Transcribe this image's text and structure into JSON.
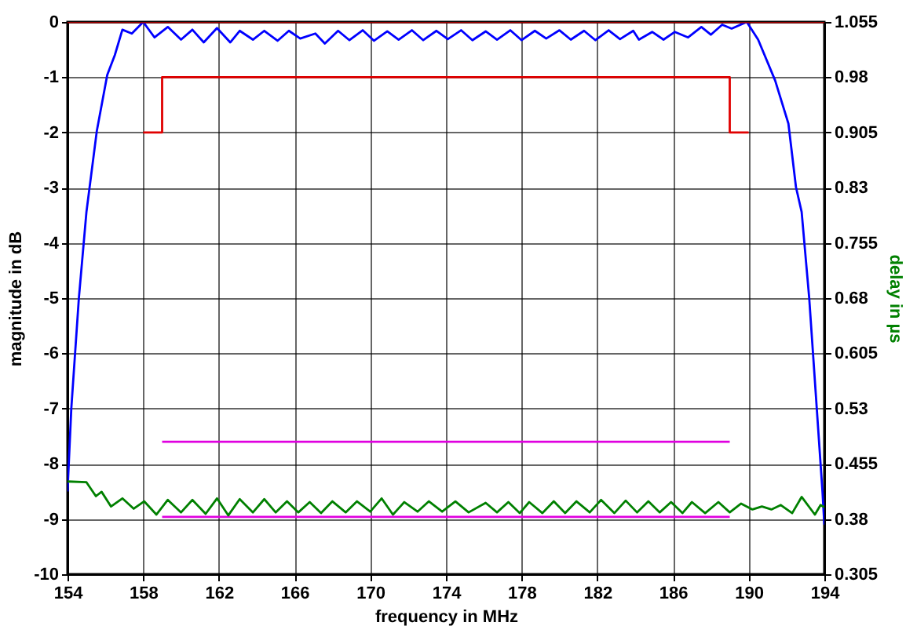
{
  "chart_data": {
    "type": "line",
    "xlabel": "frequency in MHz",
    "ylabel": "magnitude in dB",
    "y2label": "delay in µs",
    "xlim": [
      154,
      194
    ],
    "xticks": [
      154,
      158,
      162,
      166,
      170,
      174,
      178,
      182,
      186,
      190,
      194
    ],
    "ylim": [
      -10,
      0
    ],
    "yticks": [
      -10,
      -9,
      -8,
      -7,
      -6,
      -5,
      -4,
      -3,
      -2,
      -1,
      0
    ],
    "y2lim": [
      0.305,
      1.055
    ],
    "y2ticks": [
      0.305,
      0.38,
      0.455,
      0.53,
      0.605,
      0.68,
      0.755,
      0.83,
      0.905,
      0.98,
      1.055
    ],
    "grid": true,
    "series": [
      {
        "color": "#0000ff",
        "x": [
          154,
          154.2,
          154.6,
          155,
          155.55,
          156.1,
          156.5,
          156.9,
          157.4,
          158,
          158.6,
          159.3,
          160,
          160.6,
          161.2,
          161.9,
          162.6,
          163.1,
          163.8,
          164.4,
          165.1,
          165.7,
          166.3,
          167.1,
          167.6,
          168.3,
          168.9,
          169.6,
          170.2,
          170.9,
          171.5,
          172.2,
          172.8,
          173.5,
          174.1,
          174.8,
          175.4,
          176.1,
          176.7,
          177.4,
          178,
          178.7,
          179.3,
          180,
          180.6,
          181.3,
          181.9,
          182.6,
          183.2,
          183.9,
          184.2,
          184.9,
          185.5,
          186.1,
          186.8,
          187.5,
          188,
          188.6,
          189.1,
          189.9,
          190.5,
          191.4,
          192.1,
          192.5,
          192.8,
          193.2,
          193.6,
          193.9,
          194
        ],
        "values": [
          -8.5,
          -7,
          -5,
          -3.44,
          -1.97,
          -0.96,
          -0.6,
          -0.14,
          -0.21,
          0,
          -0.28,
          -0.09,
          -0.32,
          -0.14,
          -0.37,
          -0.11,
          -0.37,
          -0.16,
          -0.32,
          -0.16,
          -0.34,
          -0.16,
          -0.3,
          -0.21,
          -0.39,
          -0.16,
          -0.33,
          -0.15,
          -0.34,
          -0.17,
          -0.32,
          -0.15,
          -0.33,
          -0.16,
          -0.31,
          -0.15,
          -0.33,
          -0.17,
          -0.32,
          -0.15,
          -0.33,
          -0.16,
          -0.3,
          -0.15,
          -0.32,
          -0.16,
          -0.33,
          -0.15,
          -0.31,
          -0.16,
          -0.32,
          -0.18,
          -0.32,
          -0.18,
          -0.28,
          -0.09,
          -0.23,
          -0.05,
          -0.12,
          0,
          -0.32,
          -1.06,
          -1.84,
          -2.99,
          -3.44,
          -5,
          -7,
          -8.5,
          -9.1
        ]
      },
      {
        "color": "#e00000",
        "x": [
          158,
          159,
          159,
          189,
          189,
          190
        ],
        "values": [
          -2,
          -2,
          -1,
          -1,
          -2,
          -2
        ]
      },
      {
        "color": "#a00000",
        "x": [
          154,
          194
        ],
        "values": [
          0,
          0
        ]
      },
      {
        "color": "#e000e0",
        "axis": "y2",
        "x": [
          159,
          189
        ],
        "values": [
          0.485,
          0.485
        ]
      },
      {
        "color": "#e000e0",
        "axis": "y2",
        "x": [
          159,
          189
        ],
        "values": [
          0.383,
          0.383
        ]
      },
      {
        "color": "#008000",
        "axis": "y2",
        "x": [
          154,
          155,
          155.5,
          155.8,
          156.3,
          156.9,
          157.5,
          158.05,
          158.7,
          159.3,
          160,
          160.6,
          161.3,
          161.9,
          162.5,
          163.1,
          163.8,
          164.4,
          165,
          165.6,
          166.2,
          166.8,
          167.4,
          168,
          168.7,
          169.3,
          170,
          170.6,
          171.2,
          171.8,
          172.5,
          173.1,
          173.8,
          174.5,
          175.2,
          176.1,
          176.7,
          177.3,
          177.9,
          178.4,
          179.1,
          179.7,
          180.3,
          180.9,
          181.6,
          182.2,
          182.9,
          183.5,
          184.1,
          184.7,
          185.3,
          185.9,
          186.5,
          187,
          187.7,
          188.4,
          189,
          189.6,
          190.2,
          190.7,
          191.2,
          191.7,
          192.3,
          192.8,
          193.5,
          193.8,
          194
        ],
        "values": [
          0.431,
          0.43,
          0.411,
          0.417,
          0.397,
          0.408,
          0.394,
          0.404,
          0.386,
          0.406,
          0.389,
          0.406,
          0.387,
          0.408,
          0.385,
          0.407,
          0.389,
          0.407,
          0.389,
          0.404,
          0.389,
          0.403,
          0.388,
          0.404,
          0.389,
          0.404,
          0.39,
          0.408,
          0.386,
          0.403,
          0.39,
          0.404,
          0.39,
          0.404,
          0.389,
          0.402,
          0.389,
          0.403,
          0.388,
          0.403,
          0.388,
          0.404,
          0.388,
          0.404,
          0.389,
          0.406,
          0.388,
          0.405,
          0.389,
          0.404,
          0.389,
          0.403,
          0.388,
          0.403,
          0.388,
          0.403,
          0.389,
          0.401,
          0.393,
          0.397,
          0.393,
          0.399,
          0.388,
          0.41,
          0.386,
          0.399,
          0.396
        ]
      }
    ]
  }
}
